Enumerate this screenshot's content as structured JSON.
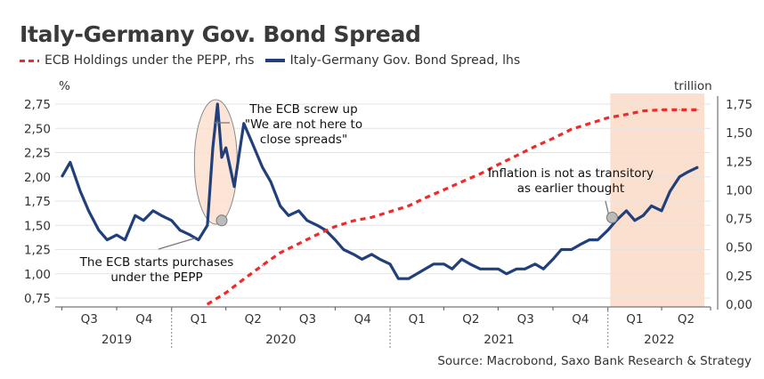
{
  "title": "Italy-Germany Gov. Bond Spread",
  "legend": {
    "pepp": "ECB Holdings under the PEPP, rhs",
    "spread": "Italy-Germany Gov. Bond Spread, lhs"
  },
  "source": "Source: Macrobond, Saxo Bank Research & Strategy",
  "colors": {
    "spread": "#213f7a",
    "pepp": "#ee2a2a",
    "shade": "#fbe0cf"
  },
  "chart_data": {
    "type": "line",
    "title": "Italy-Germany Gov. Bond Spread",
    "left_axis_unit": "%",
    "right_axis_unit": "trillion",
    "ylim_left": [
      0.7,
      2.8
    ],
    "ylim_right": [
      0,
      1.85
    ],
    "left_ticks": [
      "2,75",
      "2,50",
      "2,25",
      "2,00",
      "1,75",
      "1,50",
      "1,25",
      "1,00",
      "0,75"
    ],
    "right_ticks": [
      "1,75",
      "1,50",
      "1,25",
      "1,00",
      "0,75",
      "0,50",
      "0,25",
      "0,00"
    ],
    "x_quarter_labels": [
      "Q3",
      "Q4",
      "Q1",
      "Q2",
      "Q3",
      "Q4",
      "Q1",
      "Q2",
      "Q3",
      "Q4",
      "Q1",
      "Q2"
    ],
    "x_year_labels": [
      "2019",
      "2020",
      "2021",
      "2022"
    ],
    "grid": true,
    "legend_position": "top",
    "series": [
      {
        "name": "Italy-Germany Gov. Bond Spread, lhs",
        "axis": "left",
        "x": [
          "2019-07",
          "2019-07-15",
          "2019-08",
          "2019-08-15",
          "2019-09",
          "2019-09-15",
          "2019-10",
          "2019-10-15",
          "2019-11",
          "2019-11-15",
          "2019-12",
          "2019-12-15",
          "2020-01",
          "2020-01-15",
          "2020-02",
          "2020-02-15",
          "2020-03",
          "2020-03-10",
          "2020-03-18",
          "2020-03-25",
          "2020-04",
          "2020-04-15",
          "2020-05",
          "2020-05-15",
          "2020-06",
          "2020-06-15",
          "2020-07",
          "2020-07-15",
          "2020-08",
          "2020-08-15",
          "2020-09",
          "2020-09-15",
          "2020-10",
          "2020-10-15",
          "2020-11",
          "2020-11-15",
          "2020-12",
          "2020-12-15",
          "2021-01",
          "2021-01-15",
          "2021-02",
          "2021-02-15",
          "2021-03",
          "2021-03-15",
          "2021-04",
          "2021-04-15",
          "2021-05",
          "2021-05-15",
          "2021-06",
          "2021-06-15",
          "2021-07",
          "2021-07-15",
          "2021-08",
          "2021-08-15",
          "2021-09",
          "2021-09-15",
          "2021-10",
          "2021-10-15",
          "2021-11",
          "2021-11-15",
          "2021-12",
          "2021-12-15",
          "2022-01",
          "2022-01-15",
          "2022-02",
          "2022-02-15",
          "2022-03",
          "2022-03-15",
          "2022-04",
          "2022-04-15",
          "2022-05",
          "2022-05-15",
          "2022-06"
        ],
        "values": [
          2.0,
          2.15,
          1.85,
          1.65,
          1.45,
          1.35,
          1.4,
          1.35,
          1.6,
          1.55,
          1.65,
          1.6,
          1.55,
          1.45,
          1.4,
          1.35,
          1.5,
          2.3,
          2.75,
          2.2,
          2.3,
          1.9,
          2.55,
          2.35,
          2.1,
          1.95,
          1.7,
          1.6,
          1.65,
          1.55,
          1.5,
          1.45,
          1.35,
          1.25,
          1.2,
          1.15,
          1.2,
          1.15,
          1.1,
          0.95,
          0.95,
          1.0,
          1.05,
          1.1,
          1.1,
          1.05,
          1.15,
          1.1,
          1.05,
          1.05,
          1.05,
          1.0,
          1.05,
          1.05,
          1.1,
          1.05,
          1.15,
          1.25,
          1.25,
          1.3,
          1.35,
          1.35,
          1.45,
          1.55,
          1.65,
          1.55,
          1.6,
          1.7,
          1.65,
          1.85,
          2.0,
          2.05,
          2.1
        ]
      },
      {
        "name": "ECB Holdings under the PEPP, rhs",
        "axis": "right",
        "x": [
          "2020-03",
          "2020-04",
          "2020-05",
          "2020-06",
          "2020-07",
          "2020-08",
          "2020-09",
          "2020-10",
          "2020-11",
          "2020-12",
          "2021-01",
          "2021-02",
          "2021-03",
          "2021-04",
          "2021-05",
          "2021-06",
          "2021-07",
          "2021-08",
          "2021-09",
          "2021-10",
          "2021-11",
          "2021-12",
          "2022-01",
          "2022-02",
          "2022-03",
          "2022-04",
          "2022-05",
          "2022-06"
        ],
        "values": [
          0.0,
          0.1,
          0.22,
          0.34,
          0.45,
          0.53,
          0.61,
          0.68,
          0.73,
          0.76,
          0.81,
          0.86,
          0.93,
          1.0,
          1.07,
          1.14,
          1.22,
          1.3,
          1.38,
          1.45,
          1.53,
          1.58,
          1.63,
          1.66,
          1.69,
          1.7,
          1.7,
          1.7
        ]
      }
    ],
    "annotations": {
      "screw_up": [
        "The ECB screw up",
        "\"We are not here to",
        "close spreads\""
      ],
      "starts": [
        "The ECB starts purchases",
        "under the PEPP"
      ],
      "inflation": [
        "Inflation is not as transitory",
        "as earlier thought"
      ]
    }
  }
}
